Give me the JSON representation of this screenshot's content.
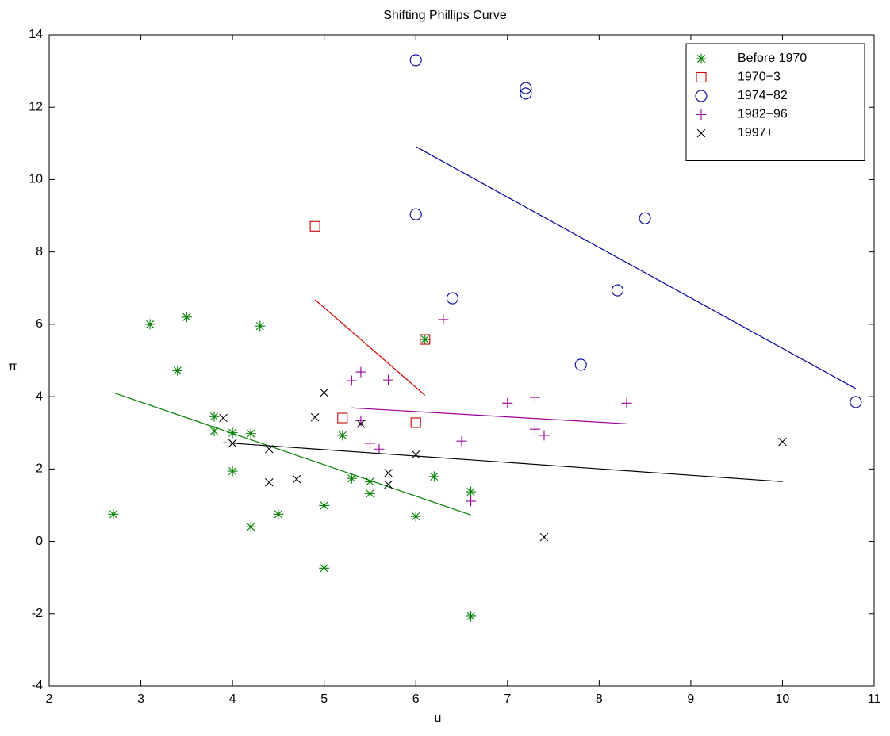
{
  "chart_data": {
    "type": "scatter",
    "title": "Shifting Phillips Curve",
    "x_label": "u",
    "y_label": "π",
    "xlim": [
      2,
      11
    ],
    "xticks": [
      2,
      3,
      4,
      5,
      6,
      7,
      8,
      9,
      10,
      11
    ],
    "ylim": [
      -4,
      14
    ],
    "yticks": [
      -4,
      -2,
      0,
      2,
      4,
      6,
      8,
      10,
      12,
      14
    ],
    "legend": "upper right",
    "series": [
      {
        "name": "Before 1970",
        "color": "#007f00",
        "marker": "*",
        "x": [
          2.7,
          3.1,
          3.4,
          3.5,
          3.8,
          3.8,
          4.0,
          4.0,
          4.2,
          4.2,
          4.3,
          4.5,
          5.0,
          5.0,
          5.2,
          5.3,
          5.5,
          5.5,
          6.1,
          6.0,
          6.2,
          6.6,
          6.6
        ],
        "values": [
          0.75,
          6.0,
          4.72,
          6.2,
          3.45,
          3.05,
          3.0,
          1.94,
          2.98,
          0.4,
          5.95,
          0.75,
          0.99,
          -0.74,
          2.93,
          1.74,
          1.65,
          1.32,
          5.58,
          0.69,
          1.79,
          1.37,
          -2.07
        ],
        "fit": {
          "x": [
            2.7,
            6.6
          ],
          "values": [
            4.11,
            0.73
          ]
        }
      },
      {
        "name": "1970−3",
        "color": "#cc0000",
        "marker": "s",
        "x": [
          4.9,
          5.2,
          6.0,
          6.1
        ],
        "values": [
          8.71,
          3.41,
          3.28,
          5.58
        ],
        "fit": {
          "x": [
            4.9,
            6.1
          ],
          "values": [
            6.68,
            4.04
          ]
        }
      },
      {
        "name": "1974−82",
        "color": "#00009f",
        "marker": "o",
        "x": [
          6.0,
          7.2,
          7.2,
          6.0,
          8.5,
          6.4,
          8.2,
          7.8,
          10.8
        ],
        "values": [
          13.3,
          12.53,
          12.38,
          9.04,
          8.93,
          6.72,
          6.94,
          4.88,
          3.85
        ],
        "fit": {
          "x": [
            6.0,
            10.8
          ],
          "values": [
            10.91,
            4.22
          ]
        }
      },
      {
        "name": "1982−96",
        "color": "#990099",
        "marker": "+",
        "x": [
          5.3,
          5.4,
          5.7,
          6.3,
          5.4,
          5.5,
          5.6,
          6.5,
          7.0,
          7.3,
          7.3,
          7.4,
          8.3,
          6.6
        ],
        "values": [
          4.44,
          4.68,
          4.46,
          6.13,
          3.34,
          2.71,
          2.55,
          2.77,
          3.82,
          3.98,
          3.1,
          2.93,
          3.82,
          1.11
        ],
        "fit": {
          "x": [
            5.3,
            8.3
          ],
          "values": [
            3.69,
            3.25
          ]
        }
      },
      {
        "name": "1997+",
        "color": "#000000",
        "marker": "x",
        "x": [
          3.9,
          4.0,
          4.4,
          4.4,
          4.7,
          4.9,
          5.0,
          5.4,
          5.7,
          5.7,
          6.0,
          7.4,
          10.0
        ],
        "values": [
          3.41,
          2.71,
          2.55,
          1.63,
          1.72,
          3.43,
          4.11,
          3.25,
          1.89,
          1.57,
          2.4,
          0.12,
          2.75
        ],
        "fit": {
          "x": [
            3.9,
            10.0
          ],
          "values": [
            2.73,
            1.65
          ]
        }
      }
    ]
  }
}
